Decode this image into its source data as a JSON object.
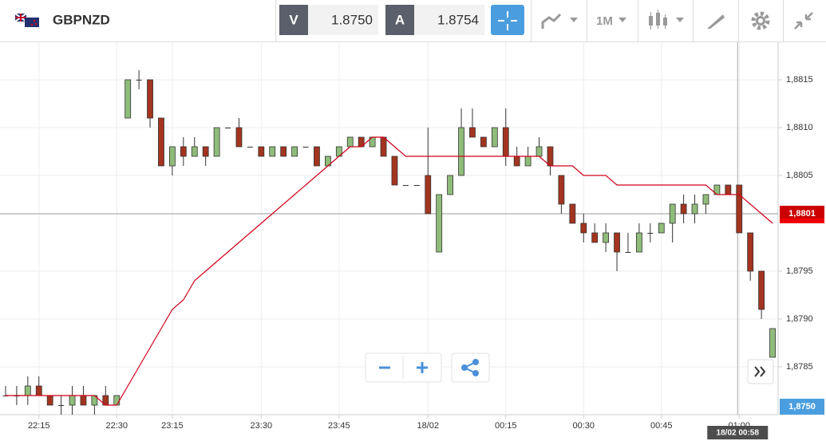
{
  "toolbar": {
    "symbol": "GBPNZD",
    "bid_label": "V",
    "bid": "1.8750",
    "ask_label": "A",
    "ask": "1.8754",
    "timeframe": "1M"
  },
  "chart_data": {
    "type": "candlestick",
    "categories": [
      null,
      null,
      null,
      "22:15",
      null,
      null,
      null,
      null,
      null,
      null,
      "22:30",
      null,
      null,
      null,
      null,
      "23:15",
      null,
      null,
      null,
      null,
      null,
      null,
      null,
      "23:30",
      null,
      null,
      null,
      null,
      null,
      null,
      "23:45",
      null,
      null,
      null,
      null,
      null,
      null,
      null,
      "18/02",
      null,
      null,
      null,
      null,
      null,
      null,
      "00:15",
      null,
      null,
      null,
      null,
      null,
      null,
      "00:30",
      null,
      null,
      null,
      null,
      null,
      null,
      "00:45",
      null,
      null,
      null,
      null,
      null,
      null,
      "01:00",
      null,
      null,
      null
    ],
    "candles": [
      [
        1.8782,
        1.8783,
        1.8782,
        1.8782
      ],
      [
        1.8782,
        1.8783,
        1.8781,
        1.8782
      ],
      [
        1.8782,
        1.8784,
        1.8781,
        1.8783
      ],
      [
        1.8783,
        1.8784,
        1.8782,
        1.8782
      ],
      [
        1.8782,
        1.8782,
        1.8781,
        1.8781
      ],
      [
        1.8781,
        1.8782,
        1.878,
        1.8781
      ],
      [
        1.8781,
        1.8783,
        1.878,
        1.8782
      ],
      [
        1.8782,
        1.8783,
        1.8781,
        1.8781
      ],
      [
        1.8781,
        1.8782,
        1.878,
        1.8782
      ],
      [
        1.8782,
        1.8783,
        1.8781,
        1.8781
      ],
      [
        1.8781,
        1.8782,
        1.8781,
        1.8782
      ],
      [
        1.8811,
        1.8815,
        1.8811,
        1.8815
      ],
      [
        1.8815,
        1.8816,
        1.8814,
        1.8815
      ],
      [
        1.8815,
        1.8815,
        1.881,
        1.8811
      ],
      [
        1.8811,
        1.8811,
        1.8806,
        1.8806
      ],
      [
        1.8806,
        1.8808,
        1.8805,
        1.8808
      ],
      [
        1.8808,
        1.8809,
        1.8806,
        1.8807
      ],
      [
        1.8807,
        1.8809,
        1.8807,
        1.8808
      ],
      [
        1.8808,
        1.8808,
        1.8806,
        1.8807
      ],
      [
        1.8807,
        1.881,
        1.8807,
        1.881
      ],
      [
        1.881,
        1.881,
        1.881,
        1.881
      ],
      [
        1.881,
        1.8811,
        1.8808,
        1.8808
      ],
      [
        1.8808,
        1.8808,
        1.8808,
        1.8808
      ],
      [
        1.8808,
        1.8808,
        1.8807,
        1.8807
      ],
      [
        1.8807,
        1.8808,
        1.8807,
        1.8808
      ],
      [
        1.8808,
        1.8808,
        1.8807,
        1.8807
      ],
      [
        1.8807,
        1.8808,
        1.8807,
        1.8808
      ],
      [
        1.8808,
        1.8808,
        1.8808,
        1.8808
      ],
      [
        1.8808,
        1.8808,
        1.8806,
        1.8806
      ],
      [
        1.8806,
        1.8807,
        1.8806,
        1.8807
      ],
      [
        1.8807,
        1.8808,
        1.8807,
        1.8808
      ],
      [
        1.8808,
        1.8809,
        1.8808,
        1.8809
      ],
      [
        1.8809,
        1.8809,
        1.8808,
        1.8808
      ],
      [
        1.8808,
        1.8809,
        1.8808,
        1.8809
      ],
      [
        1.8809,
        1.8809,
        1.8807,
        1.8807
      ],
      [
        1.8807,
        1.8807,
        1.8804,
        1.8804
      ],
      [
        1.8804,
        1.8804,
        1.8804,
        1.8804
      ],
      [
        1.8804,
        1.8804,
        1.8804,
        1.8804
      ],
      [
        1.8805,
        1.881,
        1.8801,
        1.8801
      ],
      [
        1.8797,
        1.8803,
        1.8797,
        1.8803
      ],
      [
        1.8803,
        1.8805,
        1.8803,
        1.8805
      ],
      [
        1.8805,
        1.8812,
        1.8805,
        1.881
      ],
      [
        1.881,
        1.8812,
        1.8809,
        1.8809
      ],
      [
        1.8809,
        1.8809,
        1.8808,
        1.8808
      ],
      [
        1.8808,
        1.881,
        1.8808,
        1.881
      ],
      [
        1.881,
        1.8812,
        1.8806,
        1.8807
      ],
      [
        1.8807,
        1.8808,
        1.8806,
        1.8806
      ],
      [
        1.8806,
        1.8808,
        1.8806,
        1.8807
      ],
      [
        1.8807,
        1.8809,
        1.8807,
        1.8808
      ],
      [
        1.8808,
        1.8808,
        1.8805,
        1.8806
      ],
      [
        1.8805,
        1.8805,
        1.8801,
        1.8802
      ],
      [
        1.8802,
        1.8802,
        1.88,
        1.88
      ],
      [
        1.88,
        1.8801,
        1.8798,
        1.8799
      ],
      [
        1.8799,
        1.88,
        1.8798,
        1.8798
      ],
      [
        1.8798,
        1.88,
        1.8797,
        1.8799
      ],
      [
        1.8799,
        1.8799,
        1.8795,
        1.8797
      ],
      [
        1.8797,
        1.8799,
        1.8797,
        1.8797
      ],
      [
        1.8797,
        1.88,
        1.8797,
        1.8799
      ],
      [
        1.8799,
        1.88,
        1.8798,
        1.8799
      ],
      [
        1.8799,
        1.88,
        1.8799,
        1.88
      ],
      [
        1.88,
        1.8802,
        1.8798,
        1.8802
      ],
      [
        1.8802,
        1.8803,
        1.88,
        1.8801
      ],
      [
        1.8801,
        1.8803,
        1.88,
        1.8802
      ],
      [
        1.8802,
        1.8803,
        1.8801,
        1.8803
      ],
      [
        1.8803,
        1.8804,
        1.8803,
        1.8804
      ],
      [
        1.8804,
        1.8804,
        1.8803,
        1.8803
      ],
      [
        1.8804,
        1.8804,
        1.8799,
        1.8799
      ],
      [
        1.8799,
        1.8799,
        1.8794,
        1.8795
      ],
      [
        1.8795,
        1.8795,
        1.879,
        1.8791
      ],
      [
        1.8786,
        1.8789,
        1.8786,
        1.8789
      ]
    ],
    "moving_average": {
      "color": "#d0021b",
      "values": [
        1.8782,
        1.8782,
        1.8782,
        1.8782,
        1.8782,
        1.8782,
        1.8782,
        1.8782,
        1.8782,
        1.8781,
        1.8781,
        1.8783,
        1.8785,
        1.8787,
        1.8789,
        1.8791,
        1.8792,
        1.8794,
        1.8795,
        1.8796,
        1.8797,
        1.8798,
        1.8799,
        1.88,
        1.8801,
        1.8802,
        1.8803,
        1.8804,
        1.8805,
        1.8806,
        1.8807,
        1.8808,
        1.8808,
        1.8809,
        1.8809,
        1.8808,
        1.8807,
        1.8807,
        1.8807,
        1.8807,
        1.8807,
        1.8807,
        1.8807,
        1.8807,
        1.8807,
        1.8807,
        1.8807,
        1.8807,
        1.8807,
        1.8806,
        1.8806,
        1.8806,
        1.8805,
        1.8805,
        1.8805,
        1.8804,
        1.8804,
        1.8804,
        1.8804,
        1.8804,
        1.8804,
        1.8804,
        1.8804,
        1.8804,
        1.8803,
        1.8803,
        1.8803,
        1.8802,
        1.8801,
        1.88
      ]
    },
    "up_color": "#8fbc7a",
    "down_color": "#a3341f",
    "ylim": [
      1.878,
      1.8819
    ],
    "yticks": [
      {
        "value": 1.8785,
        "label": "1,8785"
      },
      {
        "value": 1.879,
        "label": "1,8790"
      },
      {
        "value": 1.8795,
        "label": "1,8795"
      },
      {
        "value": 1.8805,
        "label": "1,8805"
      },
      {
        "value": 1.881,
        "label": "1,8810"
      },
      {
        "value": 1.8815,
        "label": "1,8815"
      }
    ],
    "price_line": {
      "value": 1.8801,
      "label": "1,8801"
    },
    "bid_tag": "1,8750",
    "crosshair_label": "18/02 00:58",
    "grid": true
  }
}
